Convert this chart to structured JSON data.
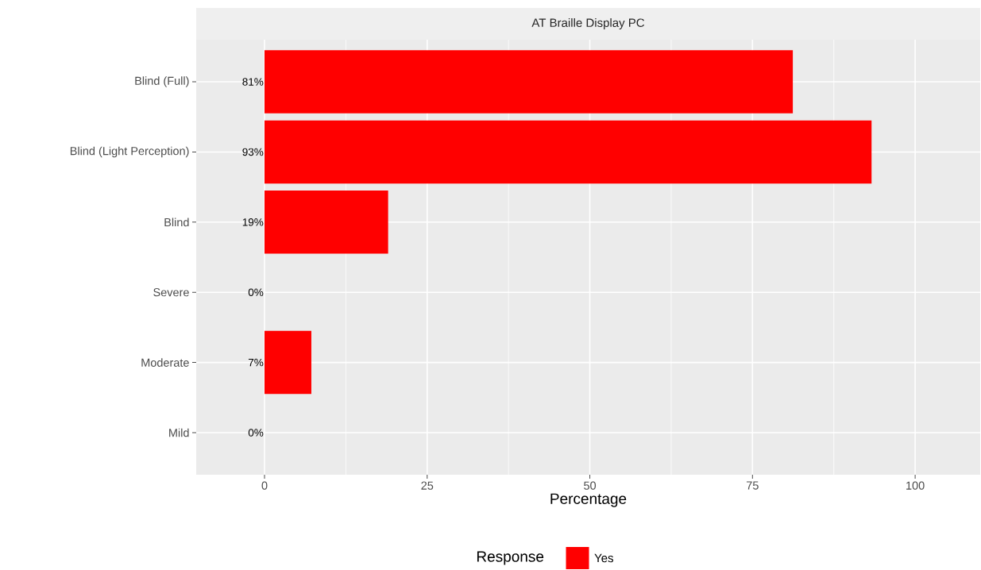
{
  "chart_data": {
    "type": "bar",
    "orientation": "horizontal",
    "title": "AT Braille Display PC",
    "xlabel": "Percentage",
    "legend_title": "Response",
    "categories": [
      "Blind (Full)",
      "Blind (Light Perception)",
      "Blind",
      "Severe",
      "Moderate",
      "Mild"
    ],
    "series": [
      {
        "name": "Yes",
        "color": "#ff0000",
        "values": [
          81.2,
          93.3,
          19.0,
          0,
          7.2,
          0
        ],
        "value_labels": [
          "81%",
          "93%",
          "19%",
          "0%",
          "7%",
          "0%"
        ]
      }
    ],
    "xlim": [
      -10.5,
      110
    ],
    "xticks": [
      0,
      25,
      50,
      75,
      100
    ],
    "grid": true,
    "legend": "bottom"
  }
}
